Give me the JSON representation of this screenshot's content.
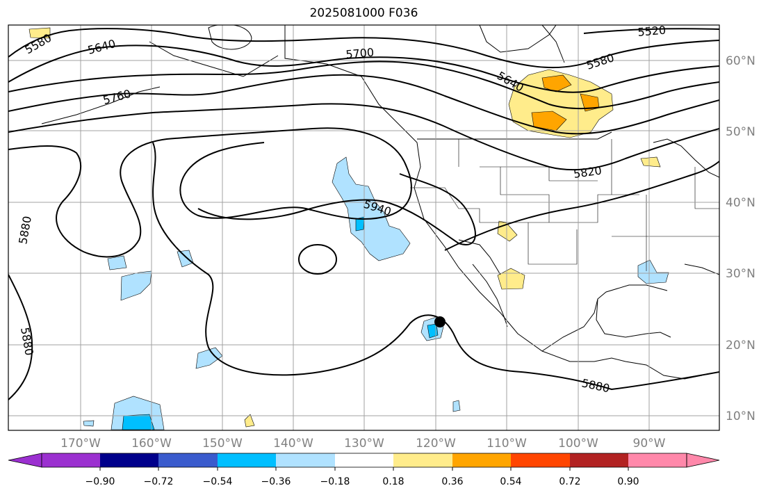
{
  "title": "2025081000 F036",
  "lat_labels": [
    "60°N",
    "50°N",
    "40°N",
    "30°N",
    "20°N",
    "10°N"
  ],
  "lon_labels": [
    "170°W",
    "160°W",
    "150°W",
    "140°W",
    "130°W",
    "120°W",
    "110°W",
    "100°W",
    "90°W"
  ],
  "contour_labels": [
    "5580",
    "5640",
    "5700",
    "5520",
    "5580",
    "5640",
    "5760",
    "5820",
    "5940",
    "5880",
    "5880",
    "5880"
  ],
  "colorbar": {
    "tick_labels": [
      "−0.90",
      "−0.72",
      "−0.54",
      "−0.36",
      "−0.18",
      "0.18",
      "0.36",
      "0.54",
      "0.72",
      "0.90"
    ],
    "colors": [
      "#9b30d0",
      "#00008b",
      "#3a5bcd",
      "#00bfff",
      "#b0e2ff",
      "#ffffff",
      "#ffec8b",
      "#ffa500",
      "#ff4500",
      "#b22222",
      "#ff88aa"
    ]
  },
  "marker": {
    "label": "storm-position"
  }
}
